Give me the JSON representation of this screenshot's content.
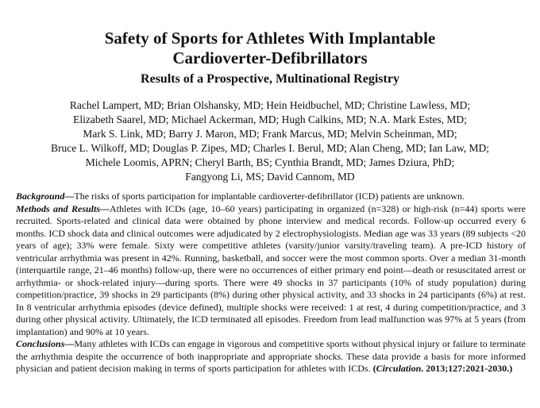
{
  "paper": {
    "title_line1": "Safety of Sports for Athletes With Implantable",
    "title_line2": "Cardioverter-Defibrillators",
    "subtitle": "Results of a Prospective, Multinational Registry",
    "authors": [
      "Rachel Lampert, MD; Brian Olshansky, MD; Hein Heidbuchel, MD; Christine Lawless, MD;",
      "Elizabeth Saarel, MD; Michael Ackerman, MD; Hugh Calkins, MD; N.A. Mark Estes, MD;",
      "Mark S. Link, MD; Barry J. Maron, MD; Frank Marcus, MD; Melvin Scheinman, MD;",
      "Bruce L. Wilkoff, MD; Douglas P. Zipes, MD; Charles I. Berul, MD; Alan Cheng, MD; Ian Law, MD;",
      "Michele Loomis, APRN; Cheryl Barth, BS; Cynthia Brandt, MD; James Dziura, PhD;",
      "Fangyong Li, MS; David Cannom, MD"
    ],
    "abstract": {
      "background_label": "Background—",
      "background_text": "The risks of sports participation for implantable cardioverter-defibrillator (ICD) patients are unknown.",
      "methods_label": "Methods and Results—",
      "methods_text": "Athletes with ICDs (age, 10–60 years) participating in organized (n=328) or high-risk (n=44) sports were recruited. Sports-related and clinical data were obtained by phone interview and medical records. Follow-up occurred every 6 months. ICD shock data and clinical outcomes were adjudicated by 2 electrophysiologists. Median age was 33 years (89 subjects <20 years of age); 33% were female. Sixty were competitive athletes (varsity/junior varsity/traveling team). A pre-ICD history of ventricular arrhythmia was present in 42%. Running, basketball, and soccer were the most common sports. Over a median 31-month (interquartile range, 21–46 months) follow-up, there were no occurrences of either primary end point—death or resuscitated arrest or arrhythmia- or shock-related injury—during sports. There were 49 shocks in 37 participants (10% of study population) during competition/practice, 39 shocks in 29 participants (8%) during other physical activity, and 33 shocks in 24 participants (6%) at rest. In 8 ventricular arrhythmia episodes (device defined), multiple shocks were received: 1 at rest, 4 during competition/practice, and 3 during other physical activity. Ultimately, the ICD terminated all episodes. Freedom from lead malfunction was 97% at 5 years (from implantation) and 90% at 10 years.",
      "conclusions_label": "Conclusions—",
      "conclusions_text": "Many athletes with ICDs can engage in vigorous and competitive sports without physical injury or failure to terminate the arrhythmia despite the occurrence of both inappropriate and appropriate shocks. These data provide a basis for more informed physician and patient decision making in terms of sports participation for athletes with ICDs.",
      "citation_open": "(",
      "citation_journal": "Circulation",
      "citation_rest": ". 2013;127:2021-2030.)"
    }
  }
}
